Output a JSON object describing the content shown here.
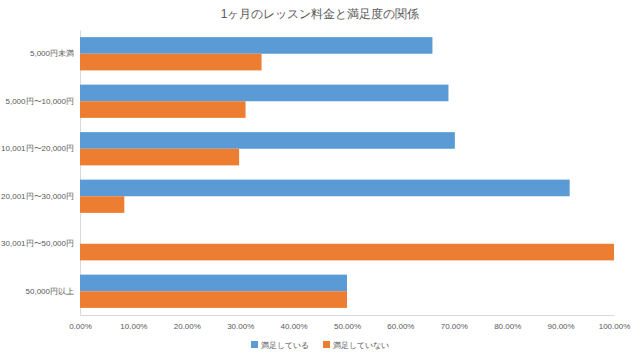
{
  "chart_data": {
    "type": "bar",
    "orientation": "horizontal",
    "title": "1ヶ月のレッスン料金と満足度の関係",
    "categories": [
      "5,000円未満",
      "5,000円〜10,000円",
      "10,001円〜20,000円",
      "20,001円〜30,000円",
      "30,001円〜50,000円",
      "50,000円以上"
    ],
    "series": [
      {
        "name": "満足している",
        "color": "#5b9bd5",
        "values": [
          66,
          69,
          70.2,
          91.7,
          0,
          50
        ]
      },
      {
        "name": "満足していない",
        "color": "#ed7d31",
        "values": [
          34,
          31,
          29.8,
          8.3,
          100,
          50
        ]
      }
    ],
    "xlim": [
      0,
      100
    ],
    "xticks": [
      {
        "value": 0,
        "label": "0.00%"
      },
      {
        "value": 10,
        "label": "10.00%"
      },
      {
        "value": 20,
        "label": "20.00%"
      },
      {
        "value": 30,
        "label": "30.00%"
      },
      {
        "value": 40,
        "label": "40.00%"
      },
      {
        "value": 50,
        "label": "50.00%"
      },
      {
        "value": 60,
        "label": "60.00%"
      },
      {
        "value": 70,
        "label": "70.00%"
      },
      {
        "value": 80,
        "label": "80.00%"
      },
      {
        "value": 90,
        "label": "90.00%"
      },
      {
        "value": 100,
        "label": "100.00%"
      }
    ],
    "grid": false,
    "legend": "bottom"
  }
}
